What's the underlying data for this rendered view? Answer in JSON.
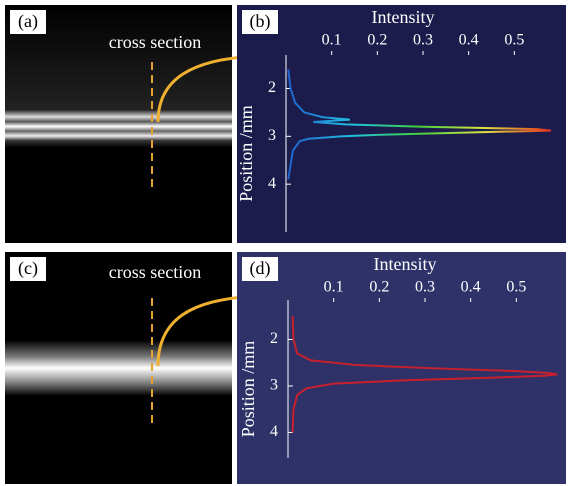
{
  "panels": [
    {
      "label": "(a)",
      "text": "cross section"
    },
    {
      "label": "(c)",
      "text": "cross section"
    }
  ],
  "chart_data": [
    {
      "type": "line",
      "panel_label": "(b)",
      "x_label": "Intensity",
      "y_label": "Position /mm",
      "xlim": [
        0,
        0.6
      ],
      "xticks": [
        0.1,
        0.2,
        0.3,
        0.4,
        0.5
      ],
      "ylim": [
        1.3,
        5.0
      ],
      "yticks": [
        2,
        3,
        4
      ],
      "y_inverted": true,
      "background": "#1c1c4c",
      "colormap": [
        "#1f5fd0",
        "#20c0e0",
        "#40d040",
        "#e0e040",
        "#e03020"
      ],
      "y": [
        1.6,
        2.0,
        2.3,
        2.5,
        2.6,
        2.65,
        2.7,
        2.75,
        2.8,
        2.85,
        2.88,
        2.92,
        2.97,
        3.0,
        3.05,
        3.1,
        3.3,
        3.6,
        3.9
      ],
      "series": [
        {
          "values": [
            0.005,
            0.01,
            0.02,
            0.04,
            0.08,
            0.14,
            0.06,
            0.13,
            0.3,
            0.55,
            0.58,
            0.4,
            0.2,
            0.12,
            0.05,
            0.03,
            0.015,
            0.01,
            0.005
          ]
        }
      ]
    },
    {
      "type": "line",
      "panel_label": "(d)",
      "x_label": "Intensity",
      "y_label": "Position /mm",
      "xlim": [
        0,
        0.6
      ],
      "xticks": [
        0.1,
        0.2,
        0.3,
        0.4,
        0.5
      ],
      "ylim": [
        1.15,
        4.55
      ],
      "yticks": [
        2,
        3,
        4
      ],
      "y_inverted": true,
      "background": "#2e3268",
      "y": [
        1.5,
        2.0,
        2.3,
        2.45,
        2.55,
        2.62,
        2.68,
        2.72,
        2.75,
        2.78,
        2.82,
        2.88,
        2.95,
        3.05,
        3.2,
        3.5,
        4.0
      ],
      "series": [
        {
          "color": "#c8202c",
          "values": [
            0.01,
            0.012,
            0.02,
            0.05,
            0.15,
            0.32,
            0.5,
            0.57,
            0.59,
            0.56,
            0.45,
            0.25,
            0.1,
            0.04,
            0.02,
            0.012,
            0.01
          ]
        }
      ]
    }
  ]
}
